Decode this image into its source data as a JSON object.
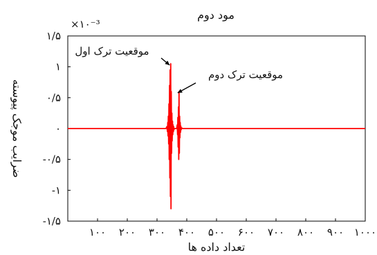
{
  "chart_data": {
    "type": "line",
    "title": "مود دوم",
    "xlabel": "تعداد داده ها",
    "ylabel": "ضرایب موجک پیوسته",
    "y_multiplier": "×۱۰⁻³",
    "xlim": [
      0,
      1000
    ],
    "ylim": [
      -0.0015,
      0.0015
    ],
    "x_ticks": [
      {
        "value": 100,
        "label": "۱۰۰"
      },
      {
        "value": 200,
        "label": "۲۰۰"
      },
      {
        "value": 300,
        "label": "۳۰۰"
      },
      {
        "value": 400,
        "label": "۴۰۰"
      },
      {
        "value": 500,
        "label": "۵۰۰"
      },
      {
        "value": 600,
        "label": "۶۰۰"
      },
      {
        "value": 700,
        "label": "۷۰۰"
      },
      {
        "value": 800,
        "label": "۸۰۰"
      },
      {
        "value": 900,
        "label": "۹۰۰"
      },
      {
        "value": 1000,
        "label": "۱۰۰۰"
      }
    ],
    "y_ticks": [
      {
        "value": 0.0015,
        "label": "۱/۵"
      },
      {
        "value": 0.001,
        "label": "۱"
      },
      {
        "value": 0.0005,
        "label": "۰/۵"
      },
      {
        "value": 0,
        "label": "۰"
      },
      {
        "value": -0.0005,
        "label": "-۰/۵"
      },
      {
        "value": -0.001,
        "label": "-۱"
      },
      {
        "value": -0.0015,
        "label": "-۱/۵"
      }
    ],
    "grid": false,
    "series_color": "#ff0000",
    "series": [
      {
        "x": [
          0,
          330,
          333,
          335,
          336,
          337,
          338,
          339,
          340,
          341,
          342,
          343,
          344,
          345,
          346,
          347,
          348,
          349,
          350,
          351,
          352,
          353,
          354,
          355,
          356,
          357,
          358,
          360,
          362,
          366,
          368,
          369,
          370,
          371,
          372,
          373,
          374,
          375,
          376,
          377,
          378,
          379,
          380,
          381,
          383,
          386,
          1000
        ],
        "y": [
          0,
          0,
          3e-05,
          -5e-05,
          0.0001,
          -0.00012,
          0.0002,
          -0.00025,
          0.0004,
          -0.0005,
          0.0007,
          -0.0008,
          0.00095,
          -0.0011,
          0.00105,
          -0.0013,
          0.0006,
          -0.0004,
          0.00025,
          -0.0002,
          0.00012,
          -0.0001,
          6e-05,
          -5e-05,
          3e-05,
          -2e-05,
          0,
          0,
          0,
          0,
          6e-05,
          -0.0001,
          0.00018,
          -0.0003,
          0.00035,
          -0.0005,
          0.0006,
          -0.0004,
          0.0002,
          -0.00015,
          0.0001,
          -6e-05,
          4e-05,
          -2e-05,
          1e-05,
          0,
          0
        ]
      }
    ],
    "annotations": [
      {
        "text": "موقعیت ترک اول",
        "x": 347,
        "y": 0.00105
      },
      {
        "text": "موقعیت ترک دوم",
        "x": 374,
        "y": 0.0006
      }
    ]
  }
}
